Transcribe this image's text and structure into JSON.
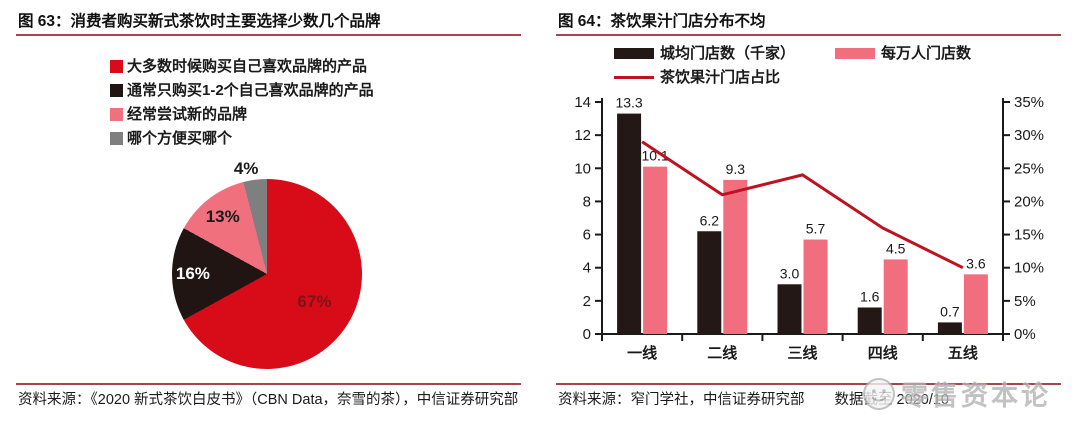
{
  "colors": {
    "background": "#ffffff",
    "accent_rule": "#a8444c",
    "text": "#1a1a1a",
    "watermark": "#b3b3b3"
  },
  "chart_data": [
    {
      "type": "pie",
      "title": "图 63：消费者购买新式茶饮时主要选择少数几个品牌",
      "legend_position": "top",
      "direction": "clockwise",
      "start_angle_deg": 0,
      "slices": [
        {
          "label": "大多数时候购买自己喜欢品牌的产品",
          "value": 67,
          "pct_label": "67%",
          "color": "#d70c18",
          "label_color": "#7e1317",
          "label_inside": true
        },
        {
          "label": "通常只购买1-2个自己喜欢品牌的产品",
          "value": 16,
          "pct_label": "16%",
          "color": "#211514",
          "label_color": "#ffffff",
          "label_inside": true
        },
        {
          "label": "经常尝试新的品牌",
          "value": 13,
          "pct_label": "13%",
          "color": "#f0707e",
          "label_color": "#1a1a1a",
          "label_inside": true
        },
        {
          "label": "哪个方便买哪个",
          "value": 4,
          "pct_label": "4%",
          "color": "#7f7f7f",
          "label_color": "#1a1a1a",
          "label_inside": false
        }
      ]
    },
    {
      "type": "bar+line",
      "title": "图 64：茶饮果汁门店分布不均",
      "legend_position": "top",
      "grid": false,
      "categories": [
        "一线",
        "二线",
        "三线",
        "四线",
        "五线"
      ],
      "series": [
        {
          "name": "城均门店数（千家）",
          "type": "bar",
          "axis": "left",
          "color": "#231815",
          "values": [
            13.3,
            6.2,
            3.0,
            1.6,
            0.7
          ],
          "labels": [
            "13.3",
            "6.2",
            "3.0",
            "1.6",
            "0.7"
          ]
        },
        {
          "name": "每万人门店数",
          "type": "bar",
          "axis": "left",
          "color": "#f06e7e",
          "values": [
            10.1,
            9.3,
            5.7,
            4.5,
            3.6
          ],
          "labels": [
            "10.1",
            "9.3",
            "5.7",
            "4.5",
            "3.6"
          ]
        },
        {
          "name": "茶饮果汁门店占比",
          "type": "line",
          "axis": "right",
          "color": "#be1220",
          "values": [
            29,
            21,
            24,
            16,
            10
          ]
        }
      ],
      "left_axis": {
        "min": 0,
        "max": 14,
        "step": 2,
        "tick_labels": [
          "0",
          "2",
          "4",
          "6",
          "8",
          "10",
          "12",
          "14"
        ]
      },
      "right_axis": {
        "min": 0,
        "max": 35,
        "step": 5,
        "tick_labels": [
          "0%",
          "5%",
          "10%",
          "15%",
          "20%",
          "25%",
          "30%",
          "35%"
        ]
      }
    }
  ],
  "left_panel": {
    "source": "资料来源：《2020 新式茶饮白皮书》（CBN Data，奈雪的茶），中信证券研究部"
  },
  "right_panel": {
    "source": "资料来源：窄门学社，中信证券研究部",
    "data_note": "数据截至 2020/10"
  },
  "watermark": {
    "text": "零售资本论",
    "logo": "smiley-face-logo"
  }
}
